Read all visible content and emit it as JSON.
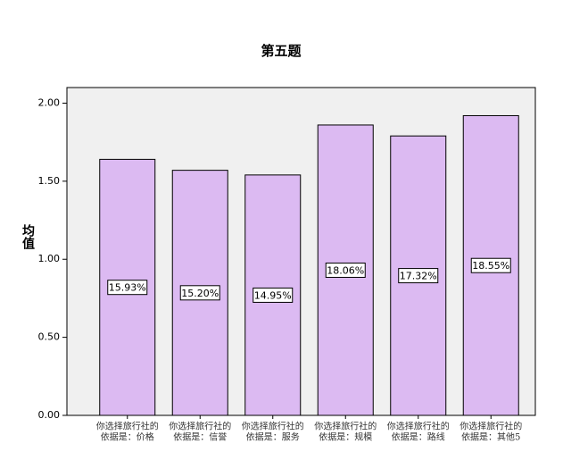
{
  "chart_data": {
    "type": "bar",
    "title": "第五题",
    "ylabel": "均值",
    "categories": [
      [
        "你选择旅行社的",
        "依据是：价格"
      ],
      [
        "你选择旅行社的",
        "依据是：信誉"
      ],
      [
        "你选择旅行社的",
        "依据是：服务"
      ],
      [
        "你选择旅行社的",
        "依据是：规模"
      ],
      [
        "你选择旅行社的",
        "依据是：路线"
      ],
      [
        "你选择旅行社的",
        "依据是：其他5"
      ]
    ],
    "values": [
      1.64,
      1.57,
      1.54,
      1.86,
      1.79,
      1.92
    ],
    "percent_labels": [
      "15.93%",
      "15.20%",
      "14.95%",
      "18.06%",
      "17.32%",
      "18.55%"
    ],
    "color": "#dcbaf2",
    "ylim": [
      0,
      2.1
    ],
    "yticks": [
      {
        "value": 0,
        "label": "0.00"
      },
      {
        "value": 0.5,
        "label": "0.50"
      },
      {
        "value": 1,
        "label": "1.00"
      },
      {
        "value": 1.5,
        "label": "1.50"
      },
      {
        "value": 2,
        "label": "2.00"
      }
    ]
  }
}
